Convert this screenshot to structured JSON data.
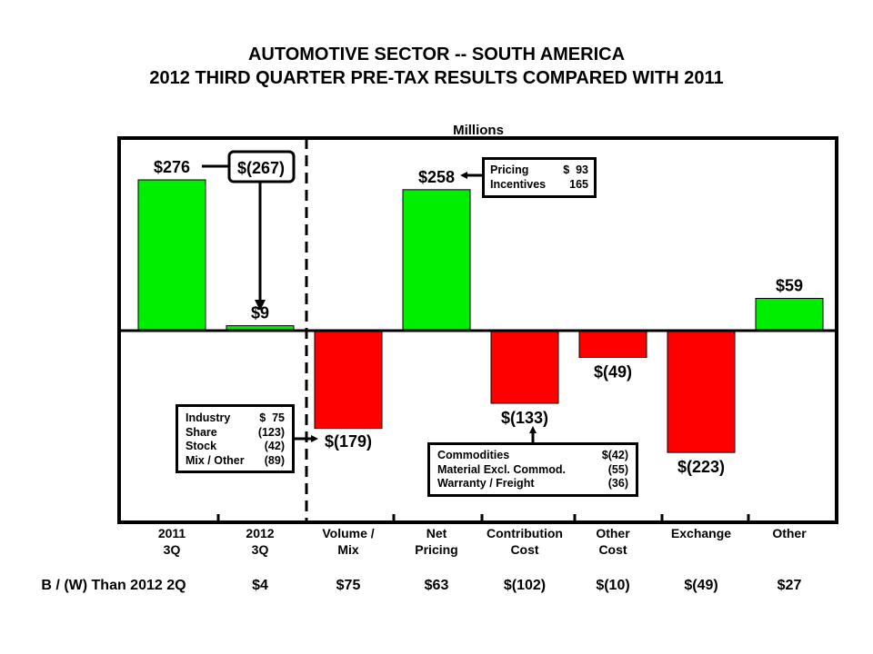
{
  "title_line1": "AUTOMOTIVE SECTOR -- SOUTH AMERICA",
  "title_line2": "2012 THIRD QUARTER PRE-TAX RESULTS COMPARED WITH 2011",
  "chart_data": {
    "type": "bar",
    "subtype": "waterfall",
    "unit_label": "Millions",
    "categories": [
      "2011 3Q",
      "2012 3Q",
      "Volume / Mix",
      "Net Pricing",
      "Contribution Cost",
      "Other Cost",
      "Exchange",
      "Other"
    ],
    "category_lines": [
      [
        "2011",
        "3Q"
      ],
      [
        "2012",
        "3Q"
      ],
      [
        "Volume /",
        "Mix"
      ],
      [
        "Net",
        "Pricing"
      ],
      [
        "Contribution",
        "Cost"
      ],
      [
        "Other",
        "Cost"
      ],
      [
        "Exchange",
        ""
      ],
      [
        "Other",
        ""
      ]
    ],
    "values": [
      276,
      9,
      -179,
      258,
      -133,
      -49,
      -223,
      59
    ],
    "value_labels": [
      "$276",
      "$9",
      "$(179)",
      "$258",
      "$(133)",
      "$(49)",
      "$(223)",
      "$59"
    ],
    "colors": {
      "positive": "#00ee00",
      "negative": "#ff0000"
    },
    "ylim": [
      -223,
      276
    ],
    "change_callout": {
      "label": "$(267)",
      "from": "2011 3Q",
      "to": "2012 3Q"
    },
    "bw_row": {
      "label": "B / (W) Than 2012 2Q",
      "values": [
        "$4",
        "$75",
        "$63",
        "$(102)",
        "$(10)",
        "$(49)",
        "$27"
      ]
    },
    "annotations": {
      "net_pricing": [
        {
          "label": "Pricing",
          "value": "$  93"
        },
        {
          "label": "Incentives",
          "value": "165"
        }
      ],
      "volume_mix": [
        {
          "label": "Industry",
          "value": "$  75"
        },
        {
          "label": "Share",
          "value": "(123)"
        },
        {
          "label": "Stock",
          "value": "(42)"
        },
        {
          "label": "Mix / Other",
          "value": "(89)"
        }
      ],
      "contribution_cost": [
        {
          "label": "Commodities",
          "value": "$(42)"
        },
        {
          "label": "Material Excl. Commod.",
          "value": "(55)"
        },
        {
          "label": "Warranty / Freight",
          "value": "(36)"
        }
      ]
    }
  }
}
